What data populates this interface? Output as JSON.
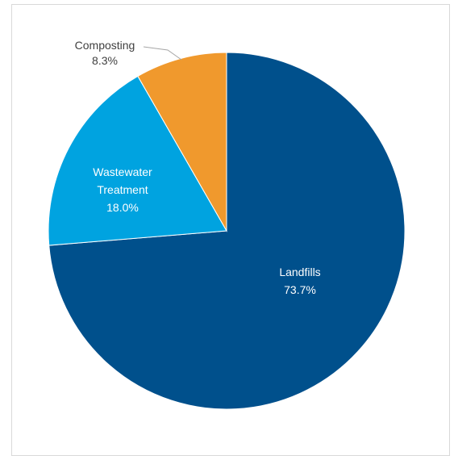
{
  "chart_data": {
    "type": "pie",
    "slices": [
      {
        "name": "Landfills",
        "value": 73.7,
        "label": "73.7%",
        "color": "#00508c"
      },
      {
        "name": "Wastewater Treatment",
        "name_lines": [
          "Wastewater",
          "Treatment"
        ],
        "value": 18.0,
        "label": "18.0%",
        "color": "#00a3e0"
      },
      {
        "name": "Composting",
        "value": 8.3,
        "label": "8.3%",
        "color": "#f0992d"
      }
    ],
    "start": "12 o'clock",
    "direction": "clockwise"
  }
}
